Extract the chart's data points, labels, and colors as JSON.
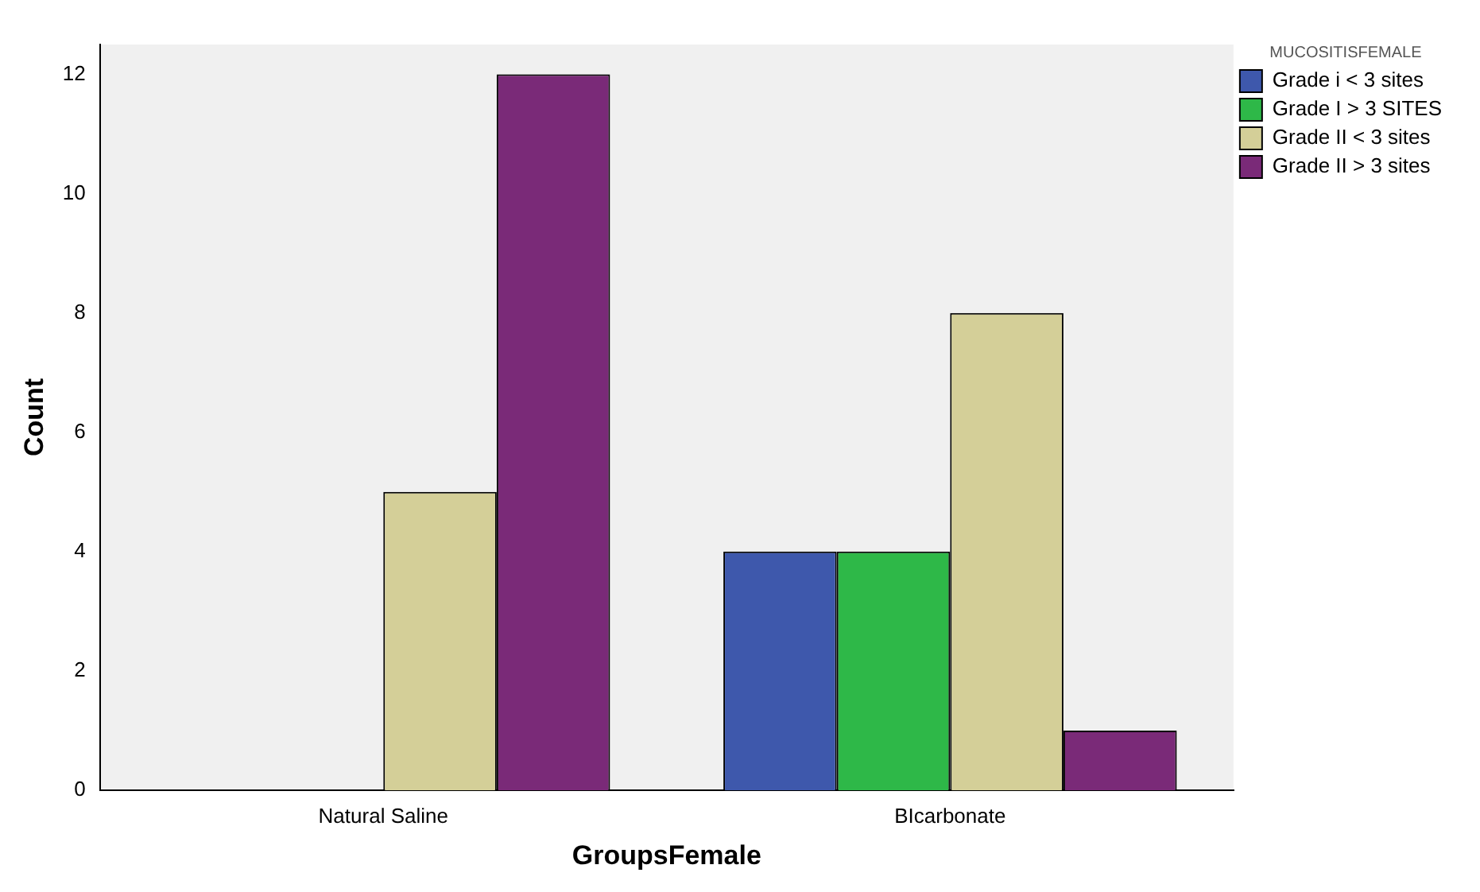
{
  "chart_data": {
    "type": "bar",
    "xlabel": "GroupsFemale",
    "ylabel": "Count",
    "legend_title": "MUCOSITISFEMALE",
    "legend": "top right",
    "grid": false,
    "categories": [
      "Natural Saline",
      "BIcarbonate"
    ],
    "series": [
      {
        "name": "Grade i < 3 sites",
        "color": "#3e58ac",
        "values": [
          0,
          4
        ]
      },
      {
        "name": "Grade I > 3 SITES",
        "color": "#2eb848",
        "values": [
          0,
          4
        ]
      },
      {
        "name": "Grade II < 3 sites",
        "color": "#d4cf98",
        "values": [
          5,
          8
        ]
      },
      {
        "name": "Grade II > 3 sites",
        "color": "#7a2a78",
        "values": [
          12,
          1
        ]
      }
    ],
    "ylim": [
      0,
      12.5
    ],
    "yticks": [
      0,
      2,
      4,
      6,
      8,
      10,
      12
    ]
  }
}
